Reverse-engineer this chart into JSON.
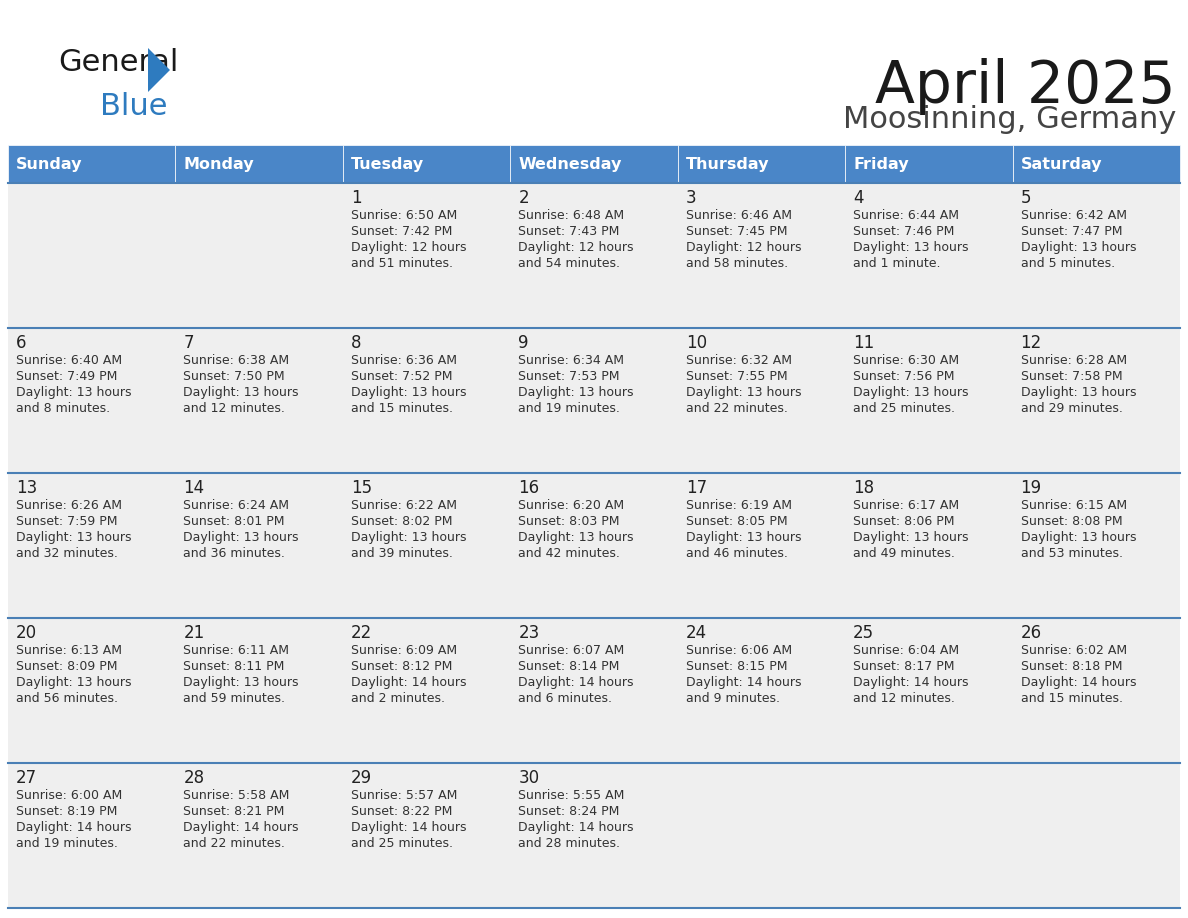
{
  "title": "April 2025",
  "subtitle": "Moosinning, Germany",
  "days_of_week": [
    "Sunday",
    "Monday",
    "Tuesday",
    "Wednesday",
    "Thursday",
    "Friday",
    "Saturday"
  ],
  "header_bg": "#4a86c8",
  "header_text": "#ffffff",
  "row_bg": "#efefef",
  "cell_text_color": "#333333",
  "day_num_color": "#222222",
  "divider_color": "#4a7fb5",
  "logo_triangle_color": "#2e7bbf",
  "calendar": [
    [
      {
        "day": "",
        "sunrise": "",
        "sunset": "",
        "daylight": ""
      },
      {
        "day": "",
        "sunrise": "",
        "sunset": "",
        "daylight": ""
      },
      {
        "day": "1",
        "sunrise": "Sunrise: 6:50 AM",
        "sunset": "Sunset: 7:42 PM",
        "daylight": "Daylight: 12 hours\nand 51 minutes."
      },
      {
        "day": "2",
        "sunrise": "Sunrise: 6:48 AM",
        "sunset": "Sunset: 7:43 PM",
        "daylight": "Daylight: 12 hours\nand 54 minutes."
      },
      {
        "day": "3",
        "sunrise": "Sunrise: 6:46 AM",
        "sunset": "Sunset: 7:45 PM",
        "daylight": "Daylight: 12 hours\nand 58 minutes."
      },
      {
        "day": "4",
        "sunrise": "Sunrise: 6:44 AM",
        "sunset": "Sunset: 7:46 PM",
        "daylight": "Daylight: 13 hours\nand 1 minute."
      },
      {
        "day": "5",
        "sunrise": "Sunrise: 6:42 AM",
        "sunset": "Sunset: 7:47 PM",
        "daylight": "Daylight: 13 hours\nand 5 minutes."
      }
    ],
    [
      {
        "day": "6",
        "sunrise": "Sunrise: 6:40 AM",
        "sunset": "Sunset: 7:49 PM",
        "daylight": "Daylight: 13 hours\nand 8 minutes."
      },
      {
        "day": "7",
        "sunrise": "Sunrise: 6:38 AM",
        "sunset": "Sunset: 7:50 PM",
        "daylight": "Daylight: 13 hours\nand 12 minutes."
      },
      {
        "day": "8",
        "sunrise": "Sunrise: 6:36 AM",
        "sunset": "Sunset: 7:52 PM",
        "daylight": "Daylight: 13 hours\nand 15 minutes."
      },
      {
        "day": "9",
        "sunrise": "Sunrise: 6:34 AM",
        "sunset": "Sunset: 7:53 PM",
        "daylight": "Daylight: 13 hours\nand 19 minutes."
      },
      {
        "day": "10",
        "sunrise": "Sunrise: 6:32 AM",
        "sunset": "Sunset: 7:55 PM",
        "daylight": "Daylight: 13 hours\nand 22 minutes."
      },
      {
        "day": "11",
        "sunrise": "Sunrise: 6:30 AM",
        "sunset": "Sunset: 7:56 PM",
        "daylight": "Daylight: 13 hours\nand 25 minutes."
      },
      {
        "day": "12",
        "sunrise": "Sunrise: 6:28 AM",
        "sunset": "Sunset: 7:58 PM",
        "daylight": "Daylight: 13 hours\nand 29 minutes."
      }
    ],
    [
      {
        "day": "13",
        "sunrise": "Sunrise: 6:26 AM",
        "sunset": "Sunset: 7:59 PM",
        "daylight": "Daylight: 13 hours\nand 32 minutes."
      },
      {
        "day": "14",
        "sunrise": "Sunrise: 6:24 AM",
        "sunset": "Sunset: 8:01 PM",
        "daylight": "Daylight: 13 hours\nand 36 minutes."
      },
      {
        "day": "15",
        "sunrise": "Sunrise: 6:22 AM",
        "sunset": "Sunset: 8:02 PM",
        "daylight": "Daylight: 13 hours\nand 39 minutes."
      },
      {
        "day": "16",
        "sunrise": "Sunrise: 6:20 AM",
        "sunset": "Sunset: 8:03 PM",
        "daylight": "Daylight: 13 hours\nand 42 minutes."
      },
      {
        "day": "17",
        "sunrise": "Sunrise: 6:19 AM",
        "sunset": "Sunset: 8:05 PM",
        "daylight": "Daylight: 13 hours\nand 46 minutes."
      },
      {
        "day": "18",
        "sunrise": "Sunrise: 6:17 AM",
        "sunset": "Sunset: 8:06 PM",
        "daylight": "Daylight: 13 hours\nand 49 minutes."
      },
      {
        "day": "19",
        "sunrise": "Sunrise: 6:15 AM",
        "sunset": "Sunset: 8:08 PM",
        "daylight": "Daylight: 13 hours\nand 53 minutes."
      }
    ],
    [
      {
        "day": "20",
        "sunrise": "Sunrise: 6:13 AM",
        "sunset": "Sunset: 8:09 PM",
        "daylight": "Daylight: 13 hours\nand 56 minutes."
      },
      {
        "day": "21",
        "sunrise": "Sunrise: 6:11 AM",
        "sunset": "Sunset: 8:11 PM",
        "daylight": "Daylight: 13 hours\nand 59 minutes."
      },
      {
        "day": "22",
        "sunrise": "Sunrise: 6:09 AM",
        "sunset": "Sunset: 8:12 PM",
        "daylight": "Daylight: 14 hours\nand 2 minutes."
      },
      {
        "day": "23",
        "sunrise": "Sunrise: 6:07 AM",
        "sunset": "Sunset: 8:14 PM",
        "daylight": "Daylight: 14 hours\nand 6 minutes."
      },
      {
        "day": "24",
        "sunrise": "Sunrise: 6:06 AM",
        "sunset": "Sunset: 8:15 PM",
        "daylight": "Daylight: 14 hours\nand 9 minutes."
      },
      {
        "day": "25",
        "sunrise": "Sunrise: 6:04 AM",
        "sunset": "Sunset: 8:17 PM",
        "daylight": "Daylight: 14 hours\nand 12 minutes."
      },
      {
        "day": "26",
        "sunrise": "Sunrise: 6:02 AM",
        "sunset": "Sunset: 8:18 PM",
        "daylight": "Daylight: 14 hours\nand 15 minutes."
      }
    ],
    [
      {
        "day": "27",
        "sunrise": "Sunrise: 6:00 AM",
        "sunset": "Sunset: 8:19 PM",
        "daylight": "Daylight: 14 hours\nand 19 minutes."
      },
      {
        "day": "28",
        "sunrise": "Sunrise: 5:58 AM",
        "sunset": "Sunset: 8:21 PM",
        "daylight": "Daylight: 14 hours\nand 22 minutes."
      },
      {
        "day": "29",
        "sunrise": "Sunrise: 5:57 AM",
        "sunset": "Sunset: 8:22 PM",
        "daylight": "Daylight: 14 hours\nand 25 minutes."
      },
      {
        "day": "30",
        "sunrise": "Sunrise: 5:55 AM",
        "sunset": "Sunset: 8:24 PM",
        "daylight": "Daylight: 14 hours\nand 28 minutes."
      },
      {
        "day": "",
        "sunrise": "",
        "sunset": "",
        "daylight": ""
      },
      {
        "day": "",
        "sunrise": "",
        "sunset": "",
        "daylight": ""
      },
      {
        "day": "",
        "sunrise": "",
        "sunset": "",
        "daylight": ""
      }
    ]
  ]
}
